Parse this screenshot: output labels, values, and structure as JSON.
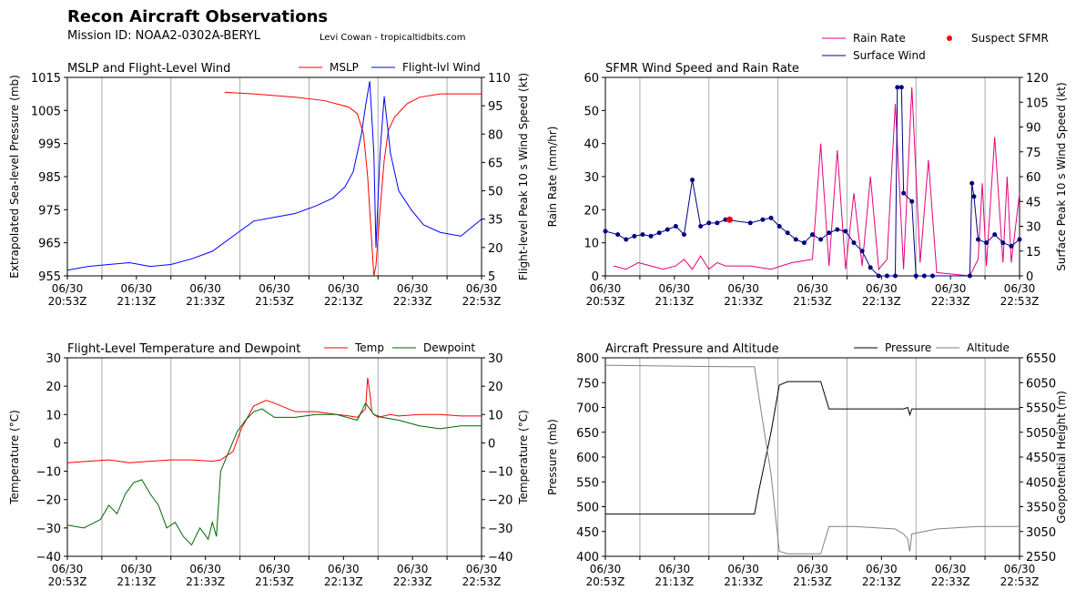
{
  "header": {
    "title": "Recon Aircraft Observations",
    "mission": "Mission ID: NOAA2-0302A-BERYL",
    "credit": "Levi Cowan - tropicaltidbits.com"
  },
  "x_ticks": [
    "06/30\n20:53Z",
    "06/30\n21:13Z",
    "06/30\n21:33Z",
    "06/30\n21:53Z",
    "06/30\n22:13Z",
    "06/30\n22:33Z",
    "06/30\n22:53Z"
  ],
  "chart_data": [
    {
      "type": "line",
      "title": "MSLP and Flight-Level Wind",
      "ylabel": "Extrapolated Sea-level Pressure (mb)",
      "y2label": "Flight-level Peak 10 s Wind Speed (kt)",
      "ylim": [
        955,
        1015
      ],
      "y2lim": [
        5,
        110
      ],
      "yticks": [
        "955",
        "965",
        "975",
        "985",
        "995",
        "1005",
        "1015"
      ],
      "y2ticks": [
        "5",
        "20",
        "35",
        "50",
        "65",
        "80",
        "95",
        "110"
      ],
      "legend": "top-right",
      "series": [
        {
          "name": "MSLP",
          "axis": "left",
          "color": "#ff0000",
          "x": [
            0.38,
            0.45,
            0.55,
            0.62,
            0.68,
            0.7,
            0.715,
            0.725,
            0.735,
            0.74,
            0.745,
            0.755,
            0.765,
            0.775,
            0.79,
            0.82,
            0.85,
            0.9,
            0.95,
            1.0
          ],
          "values": [
            1010.5,
            1010,
            1009,
            1008,
            1006,
            1004,
            998,
            985,
            965,
            955,
            958,
            975,
            990,
            999,
            1003,
            1007,
            1009,
            1010,
            1010,
            1010
          ]
        },
        {
          "name": "Flight-lvl Wind",
          "axis": "right",
          "color": "#0000ff",
          "x": [
            0.0,
            0.05,
            0.1,
            0.15,
            0.2,
            0.25,
            0.3,
            0.35,
            0.4,
            0.45,
            0.5,
            0.55,
            0.6,
            0.64,
            0.67,
            0.69,
            0.71,
            0.72,
            0.73,
            0.74,
            0.745,
            0.755,
            0.765,
            0.78,
            0.8,
            0.83,
            0.86,
            0.9,
            0.95,
            1.0
          ],
          "values": [
            8,
            10,
            11,
            12,
            10,
            11,
            14,
            18,
            26,
            34,
            36,
            38,
            42,
            46,
            52,
            60,
            80,
            95,
            108,
            70,
            20,
            70,
            100,
            70,
            50,
            40,
            32,
            28,
            26,
            35
          ]
        }
      ]
    },
    {
      "type": "line",
      "title": "SFMR Wind Speed and Rain Rate",
      "ylabel": "Rain Rate (mm/hr)",
      "y2label": "Surface Peak 10 s Wind Speed (kt)",
      "ylim": [
        0,
        60
      ],
      "y2lim": [
        0,
        120
      ],
      "yticks": [
        "0",
        "10",
        "20",
        "30",
        "40",
        "50",
        "60"
      ],
      "y2ticks": [
        "0",
        "15",
        "30",
        "45",
        "60",
        "75",
        "90",
        "105",
        "120"
      ],
      "legend": "above-top-right",
      "series": [
        {
          "name": "Rain Rate",
          "axis": "left",
          "color": "#e6007e",
          "x": [
            0.02,
            0.05,
            0.08,
            0.11,
            0.14,
            0.17,
            0.19,
            0.21,
            0.23,
            0.25,
            0.27,
            0.29,
            0.35,
            0.4,
            0.45,
            0.5,
            0.52,
            0.54,
            0.56,
            0.58,
            0.6,
            0.62,
            0.64,
            0.66,
            0.68,
            0.7,
            0.72,
            0.74,
            0.76,
            0.78,
            0.8,
            0.88,
            0.9,
            0.91,
            0.92,
            0.94,
            0.96,
            0.97,
            0.98,
            1.0
          ],
          "values": [
            3,
            2,
            4,
            3,
            2,
            3,
            5,
            2,
            6,
            2,
            4,
            3,
            3,
            2,
            4,
            5,
            40,
            3,
            38,
            2,
            25,
            3,
            30,
            2,
            5,
            52,
            2,
            57,
            4,
            35,
            1,
            0,
            5,
            28,
            3,
            42,
            4,
            30,
            4,
            25
          ]
        },
        {
          "name": "Surface Wind",
          "axis": "right",
          "color": "#000080",
          "x": [
            0.0,
            0.03,
            0.05,
            0.07,
            0.09,
            0.11,
            0.13,
            0.15,
            0.17,
            0.19,
            0.21,
            0.23,
            0.25,
            0.27,
            0.29,
            0.35,
            0.38,
            0.4,
            0.42,
            0.44,
            0.46,
            0.48,
            0.5,
            0.52,
            0.54,
            0.56,
            0.58,
            0.6,
            0.62,
            0.64,
            0.66,
            0.68,
            0.7,
            0.705,
            0.715,
            0.72,
            0.74,
            0.75,
            0.77,
            0.79,
            0.88,
            0.885,
            0.89,
            0.9,
            0.92,
            0.94,
            0.96,
            0.98,
            1.0
          ],
          "values": [
            27,
            25,
            22,
            24,
            25,
            24,
            26,
            28,
            30,
            25,
            58,
            30,
            32,
            32,
            34,
            32,
            34,
            35,
            30,
            26,
            22,
            20,
            25,
            22,
            26,
            28,
            27,
            20,
            15,
            5,
            0,
            0,
            0,
            114,
            114,
            50,
            45,
            0,
            0,
            0,
            0,
            56,
            48,
            22,
            20,
            25,
            20,
            18,
            22
          ]
        },
        {
          "name": "Suspect SFMR",
          "axis": "right",
          "color": "#ff0000",
          "x": [
            0.3
          ],
          "values": [
            34
          ]
        }
      ]
    },
    {
      "type": "line",
      "title": "Flight-Level Temperature and Dewpoint",
      "ylabel": "Temperature (°C)",
      "y2label": "Temperature (°C)",
      "ylim": [
        -40,
        30
      ],
      "y2lim": [
        -40,
        30
      ],
      "yticks": [
        "−40",
        "−30",
        "−20",
        "−10",
        "0",
        "10",
        "20",
        "30"
      ],
      "legend": "top-right",
      "series": [
        {
          "name": "Temp",
          "axis": "left",
          "color": "#ff0000",
          "x": [
            0.0,
            0.05,
            0.1,
            0.15,
            0.2,
            0.25,
            0.3,
            0.35,
            0.37,
            0.4,
            0.42,
            0.45,
            0.48,
            0.5,
            0.55,
            0.6,
            0.65,
            0.68,
            0.7,
            0.72,
            0.725,
            0.73,
            0.735,
            0.74,
            0.75,
            0.78,
            0.8,
            0.85,
            0.9,
            0.95,
            1.0
          ],
          "values": [
            -7,
            -6.5,
            -6,
            -7,
            -6.5,
            -6,
            -6,
            -6.5,
            -6,
            -3,
            5,
            13,
            15,
            14,
            11,
            11,
            10,
            9.5,
            9,
            12,
            23,
            18,
            11,
            10,
            9,
            10,
            9.5,
            10,
            10,
            9.5,
            9.5
          ]
        },
        {
          "name": "Dewpoint",
          "axis": "left",
          "color": "#006400",
          "x": [
            0.0,
            0.04,
            0.08,
            0.1,
            0.12,
            0.14,
            0.16,
            0.18,
            0.2,
            0.22,
            0.24,
            0.26,
            0.28,
            0.3,
            0.32,
            0.34,
            0.35,
            0.36,
            0.37,
            0.39,
            0.41,
            0.43,
            0.45,
            0.47,
            0.5,
            0.55,
            0.6,
            0.65,
            0.7,
            0.72,
            0.74,
            0.76,
            0.8,
            0.85,
            0.9,
            0.95,
            1.0
          ],
          "values": [
            -29,
            -30,
            -27,
            -22,
            -25,
            -18,
            -14,
            -13,
            -18,
            -22,
            -30,
            -28,
            -33,
            -36,
            -30,
            -34,
            -28,
            -33,
            -10,
            -3,
            4,
            8,
            11,
            12,
            9,
            9,
            10,
            10,
            8,
            14,
            10,
            9,
            8,
            6,
            5,
            6,
            6
          ]
        }
      ]
    },
    {
      "type": "line",
      "title": "Aircraft Pressure and Altitude",
      "ylabel": "Pressure (mb)",
      "y2label": "Geopotential Height (m)",
      "ylim": [
        400,
        800
      ],
      "y2lim": [
        2550,
        6550
      ],
      "yticks": [
        "400",
        "450",
        "500",
        "550",
        "600",
        "650",
        "700",
        "750",
        "800"
      ],
      "y2ticks": [
        "2550",
        "3050",
        "3550",
        "4050",
        "4550",
        "5050",
        "5550",
        "6050",
        "6550"
      ],
      "legend": "top-right",
      "series": [
        {
          "name": "Pressure",
          "axis": "left",
          "color": "#000000",
          "x": [
            0.0,
            0.1,
            0.2,
            0.3,
            0.36,
            0.37,
            0.4,
            0.42,
            0.44,
            0.5,
            0.52,
            0.54,
            0.6,
            0.7,
            0.72,
            0.73,
            0.735,
            0.74,
            0.8,
            0.9,
            1.0
          ],
          "values": [
            485,
            485,
            485,
            485,
            485,
            530,
            650,
            745,
            752,
            752,
            752,
            697,
            697,
            697,
            697,
            700,
            685,
            697,
            697,
            697,
            697
          ]
        },
        {
          "name": "Altitude",
          "axis": "right",
          "color": "#808080",
          "x": [
            0.0,
            0.1,
            0.2,
            0.3,
            0.36,
            0.37,
            0.4,
            0.42,
            0.44,
            0.5,
            0.52,
            0.54,
            0.6,
            0.7,
            0.72,
            0.73,
            0.735,
            0.74,
            0.8,
            0.9,
            1.0
          ],
          "values": [
            6400,
            6390,
            6380,
            6370,
            6370,
            5800,
            4200,
            2650,
            2600,
            2600,
            2600,
            3150,
            3150,
            3100,
            3000,
            2900,
            2650,
            3000,
            3100,
            3150,
            3150
          ]
        }
      ]
    }
  ]
}
